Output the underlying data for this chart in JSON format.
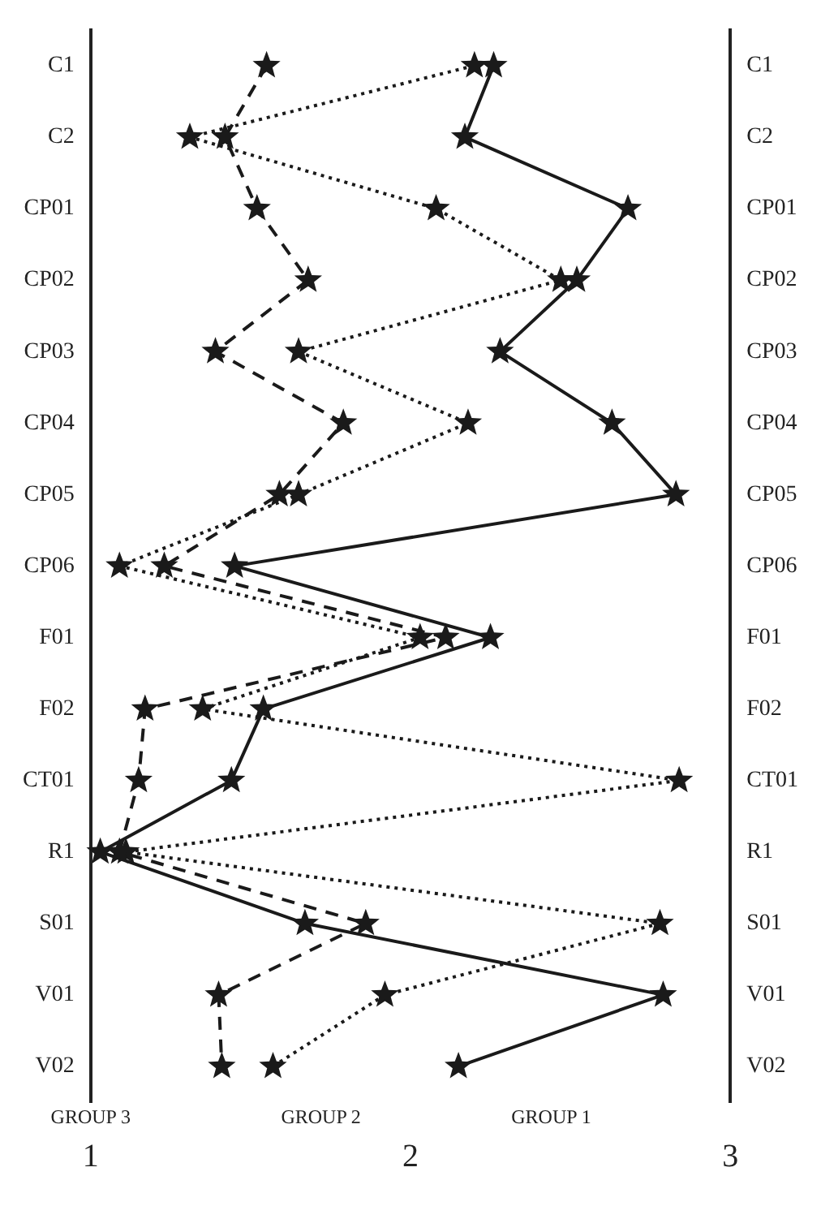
{
  "chart_data": {
    "type": "line",
    "categories": [
      "C1",
      "C2",
      "CP01",
      "CP02",
      "CP03",
      "CP04",
      "CP05",
      "CP06",
      "F01",
      "F02",
      "CT01",
      "R1",
      "S01",
      "V01",
      "V02"
    ],
    "series": [
      {
        "color": "#1a1a1a",
        "line_style": "solid",
        "values": [
          2.26,
          2.17,
          2.68,
          2.52,
          2.28,
          2.63,
          2.83,
          1.45,
          2.25,
          1.54,
          1.44,
          1.03,
          1.67,
          2.79,
          2.15
        ]
      },
      {
        "color": "#1a1a1a",
        "line_style": "dotted",
        "values": [
          2.2,
          1.31,
          2.08,
          2.47,
          1.65,
          2.18,
          1.65,
          1.09,
          2.03,
          1.35,
          2.84,
          1.11,
          2.78,
          1.92,
          1.57
        ]
      },
      {
        "color": "#1a1a1a",
        "line_style": "dashed",
        "values": [
          1.55,
          1.42,
          1.52,
          1.68,
          1.39,
          1.79,
          1.59,
          1.23,
          2.11,
          1.17,
          1.15,
          1.09,
          1.86,
          1.4,
          1.41
        ]
      }
    ],
    "orientation": "horizontal",
    "xlim": [
      1,
      3
    ],
    "xticks": [
      1,
      2,
      3
    ],
    "marker": "star",
    "grid": false,
    "legend": false,
    "annotations": [
      "GROUP 3",
      "GROUP 2",
      "GROUP 1"
    ]
  }
}
